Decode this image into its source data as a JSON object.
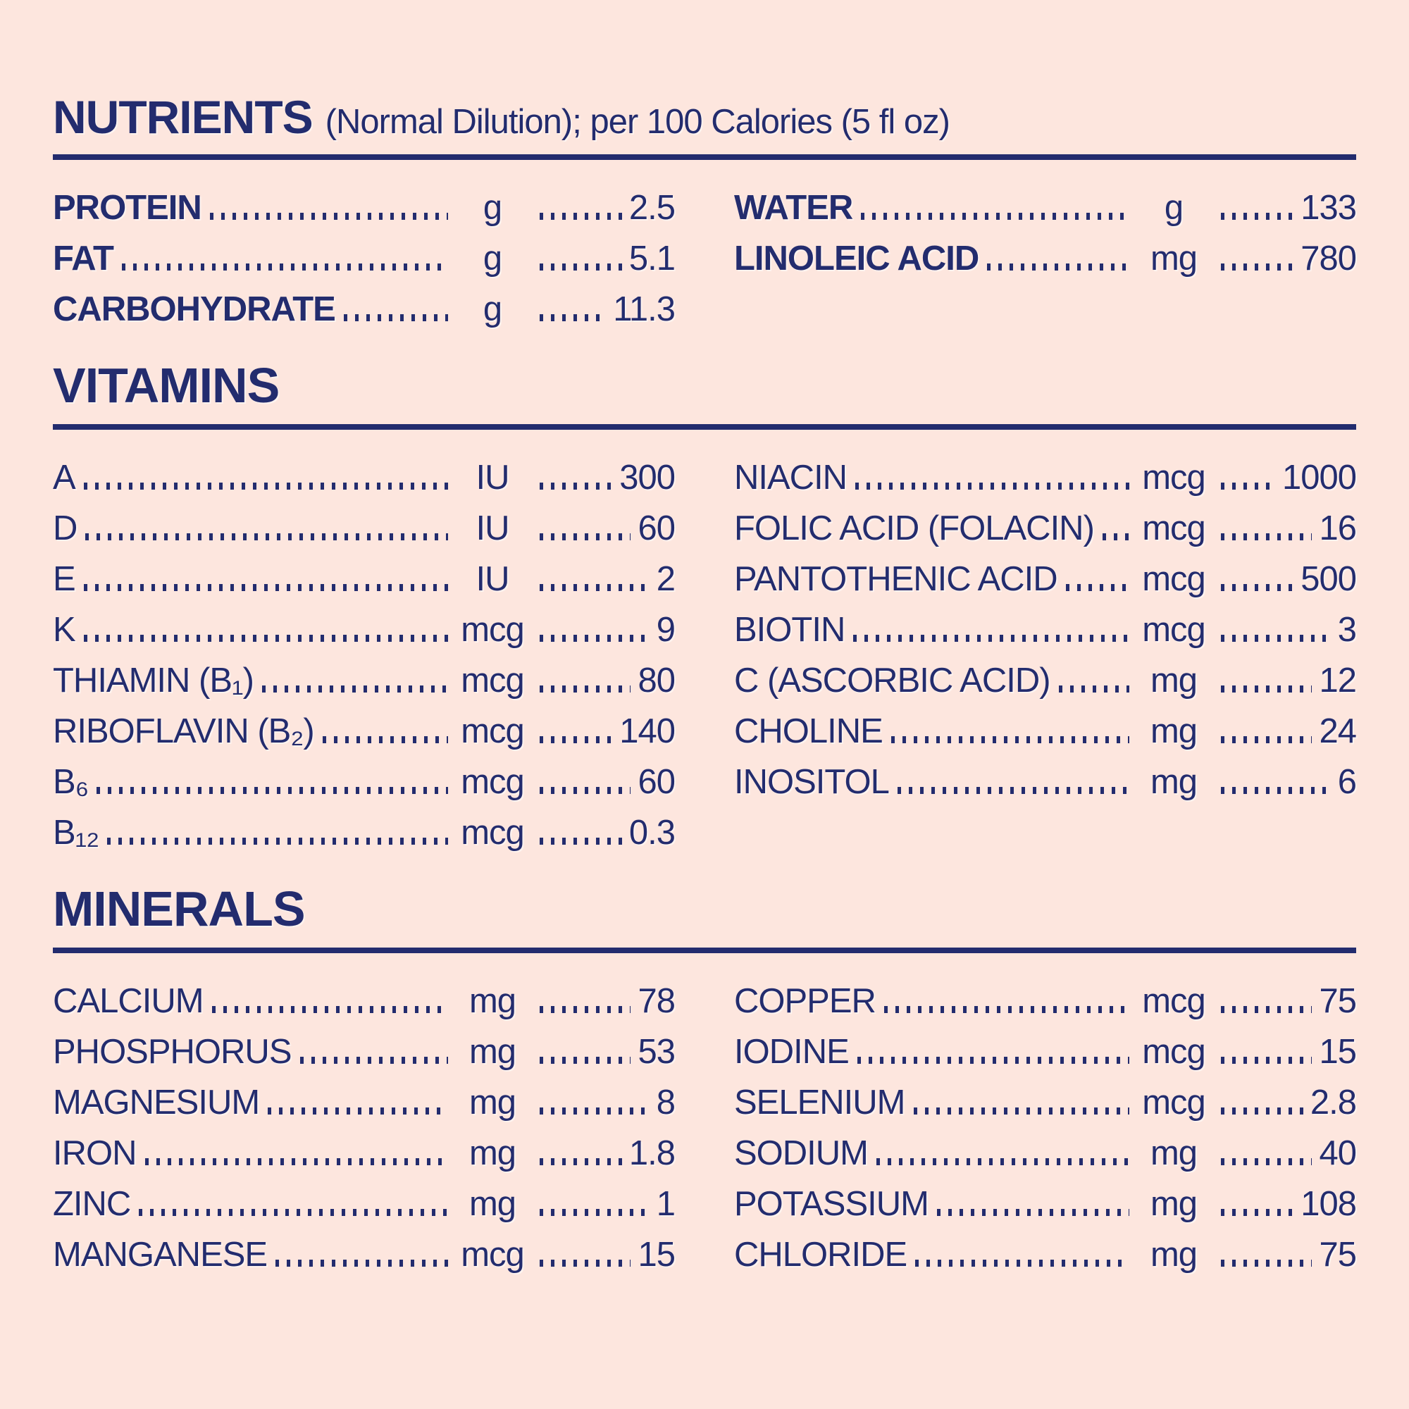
{
  "page": {
    "background": "#fde6de",
    "ink": "#232c6e"
  },
  "header": {
    "title": "NUTRIENTS",
    "subtitle": "(Normal Dilution); per 100 Calories (5 fl oz)"
  },
  "sections": [
    {
      "name": "NUTRIENTS",
      "bold_labels": true,
      "left": [
        {
          "label": "PROTEIN",
          "unit": "g",
          "value": "2.5"
        },
        {
          "label": "FAT",
          "unit": "g",
          "value": "5.1"
        },
        {
          "label": "CARBOHYDRATE",
          "unit": "g",
          "value": "11.3"
        }
      ],
      "right": [
        {
          "label": "WATER",
          "unit": "g",
          "value": "133"
        },
        {
          "label": "LINOLEIC ACID",
          "unit": "mg",
          "value": "780"
        }
      ]
    },
    {
      "title": "VITAMINS",
      "bold_labels": false,
      "left": [
        {
          "label": "A",
          "unit": "IU",
          "value": "300"
        },
        {
          "label": "D",
          "unit": "IU",
          "value": "60"
        },
        {
          "label": "E",
          "unit": "IU",
          "value": "2"
        },
        {
          "label": "K",
          "unit": "mcg",
          "value": "9"
        },
        {
          "label": "THIAMIN (B₁)",
          "unit": "mcg",
          "value": "80"
        },
        {
          "label": "RIBOFLAVIN (B₂)",
          "unit": "mcg",
          "value": "140"
        },
        {
          "label": "B₆",
          "unit": "mcg",
          "value": "60"
        },
        {
          "label": "B₁₂",
          "unit": "mcg",
          "value": "0.3"
        }
      ],
      "right": [
        {
          "label": "NIACIN",
          "unit": "mcg",
          "value": "1000"
        },
        {
          "label": "FOLIC ACID (FOLACIN)",
          "unit": "mcg",
          "value": "16"
        },
        {
          "label": "PANTOTHENIC ACID",
          "unit": "mcg",
          "value": "500"
        },
        {
          "label": "BIOTIN",
          "unit": "mcg",
          "value": "3"
        },
        {
          "label": "C (ASCORBIC ACID)",
          "unit": "mg",
          "value": "12"
        },
        {
          "label": "CHOLINE",
          "unit": "mg",
          "value": "24"
        },
        {
          "label": "INOSITOL",
          "unit": "mg",
          "value": "6"
        }
      ]
    },
    {
      "title": "MINERALS",
      "bold_labels": false,
      "left": [
        {
          "label": "CALCIUM",
          "unit": "mg",
          "value": "78"
        },
        {
          "label": "PHOSPHORUS",
          "unit": "mg",
          "value": "53"
        },
        {
          "label": "MAGNESIUM",
          "unit": "mg",
          "value": "8"
        },
        {
          "label": "IRON",
          "unit": "mg",
          "value": "1.8"
        },
        {
          "label": "ZINC",
          "unit": "mg",
          "value": "1"
        },
        {
          "label": "MANGANESE",
          "unit": "mcg",
          "value": "15"
        }
      ],
      "right": [
        {
          "label": "COPPER",
          "unit": "mcg",
          "value": "75"
        },
        {
          "label": "IODINE",
          "unit": "mcg",
          "value": "15"
        },
        {
          "label": "SELENIUM",
          "unit": "mcg",
          "value": "2.8"
        },
        {
          "label": "SODIUM",
          "unit": "mg",
          "value": "40"
        },
        {
          "label": "POTASSIUM",
          "unit": "mg",
          "value": "108"
        },
        {
          "label": "CHLORIDE",
          "unit": "mg",
          "value": "75"
        }
      ]
    }
  ]
}
